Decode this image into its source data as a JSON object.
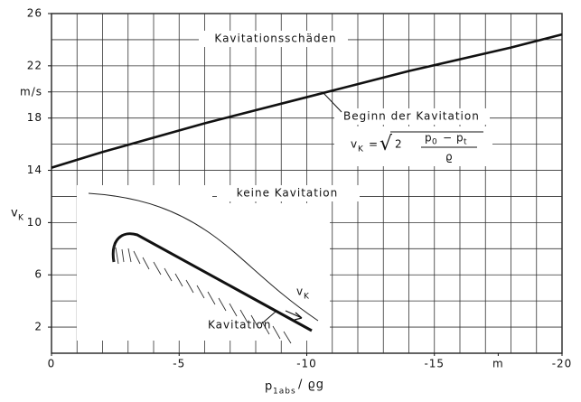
{
  "chart_data": {
    "type": "line",
    "x": [
      0,
      -2,
      -4,
      -6,
      -8,
      -10,
      -12,
      -14,
      -16,
      -18,
      -20
    ],
    "series": [
      {
        "color": "#111111",
        "values": [
          14.2,
          15.4,
          16.5,
          17.6,
          18.6,
          19.6,
          20.6,
          21.6,
          22.5,
          23.4,
          24.4
        ]
      }
    ],
    "xlim": [
      0,
      -20
    ],
    "ylim": [
      0,
      26
    ],
    "xticks": [
      0,
      -5,
      -10,
      -15,
      {
        "value": -17.5,
        "label": "m"
      },
      -20
    ],
    "yticks": [
      2,
      6,
      10,
      14,
      18,
      {
        "value": 20,
        "label": "m/s"
      },
      22,
      26
    ],
    "xgrid": [
      0,
      -1,
      -2,
      -3,
      -4,
      -5,
      -6,
      -7,
      -8,
      -9,
      -10,
      -11,
      -12,
      -13,
      -14,
      -15,
      -16,
      -17,
      -18,
      -19,
      -20
    ],
    "ygrid": [
      0,
      2,
      4,
      6,
      8,
      10,
      12,
      14,
      16,
      18,
      20,
      22,
      24,
      26
    ],
    "grid": true,
    "y_label": {
      "main": "v",
      "sub": "K"
    },
    "x_label": {
      "main": "p",
      "sub": "1abs",
      "rest": "/ ϱg"
    },
    "annotations": {
      "upper_region": "Kavitationsschäden",
      "onset": "Beginn der Kavitation",
      "lower_region": "keine Kavitation",
      "inset_cavitation": "Kavitation",
      "inset_velocity": {
        "main": "v",
        "sub": "K"
      },
      "formula": {
        "lhs": "v",
        "lhs_sub": "K",
        "eq": "=",
        "root": "√",
        "factor": "2",
        "num_a": "p",
        "num_a_sub": "0",
        "minus": "−",
        "num_b": "p",
        "num_b_sub": "t",
        "den": "ϱ"
      }
    }
  }
}
